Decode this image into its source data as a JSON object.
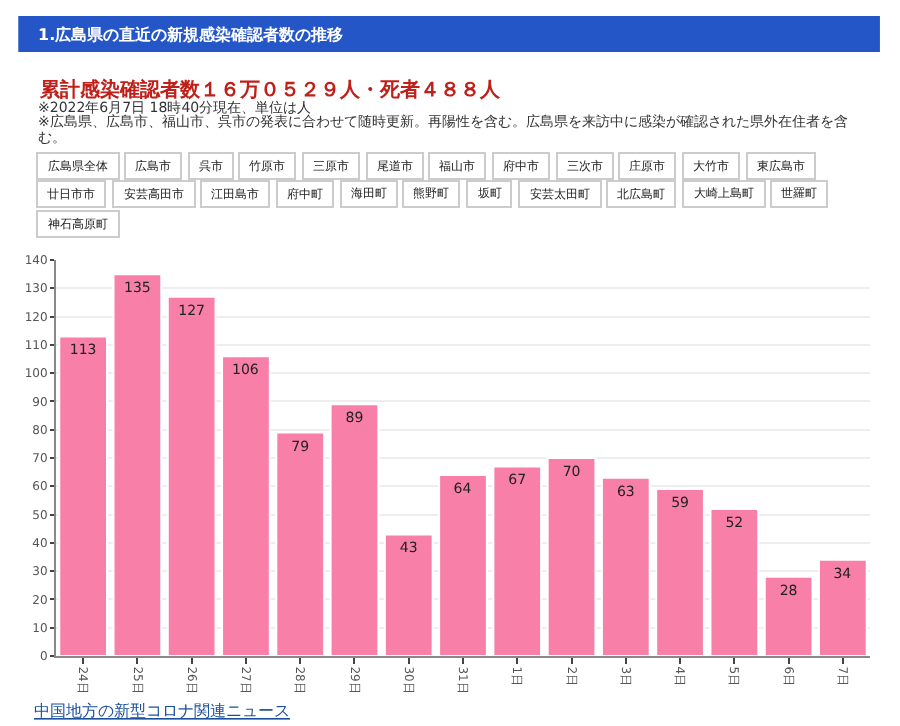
{
  "chart_data": {
    "type": "bar",
    "title": "1.広島県の直近の新規感染確認者数の推移",
    "subtitle": "累計感染確認者数１６万０５２９人・死者４８８人",
    "annotations": [
      "※2022年6月7日 18時40分現在、単位は人",
      "※広島県、広島市、福山市、呉市の発表に合わせて随時更新。再陽性を含む。広島県を来訪中に感染が確認された県外在住者を含む。",
      "広島県全体",
      "広島市",
      "呉市",
      "竹原市",
      "三原市",
      "尾道市",
      "福山市",
      "府中市",
      "三次市",
      "庄原市",
      "大竹市",
      "東広島市",
      "廿日市市",
      "安芸高田市",
      "江田島市",
      "府中町",
      "海田町",
      "熊野町",
      "坂町",
      "安芸太田町",
      "北広島町",
      "大崎上島町",
      "世羅町",
      "神石高原町",
      "中国地方の新型コロナ関連ニュース"
    ],
    "categories": [
      "24日",
      "25日",
      "26日",
      "27日",
      "28日",
      "29日",
      "30日",
      "31日",
      "1日",
      "2日",
      "3日",
      "4日",
      "5日",
      "6日",
      "7日"
    ],
    "values": [
      113,
      135,
      127,
      106,
      79,
      89,
      43,
      64,
      67,
      70,
      63,
      59,
      52,
      28,
      34
    ],
    "color": "#f77fa8",
    "data_labels": true,
    "ylim": [
      0,
      140
    ],
    "yticks": [
      0,
      10,
      20,
      30,
      40,
      50,
      60,
      70,
      80,
      90,
      100,
      110,
      120,
      130,
      140
    ],
    "grid": "y",
    "legend": false
  }
}
